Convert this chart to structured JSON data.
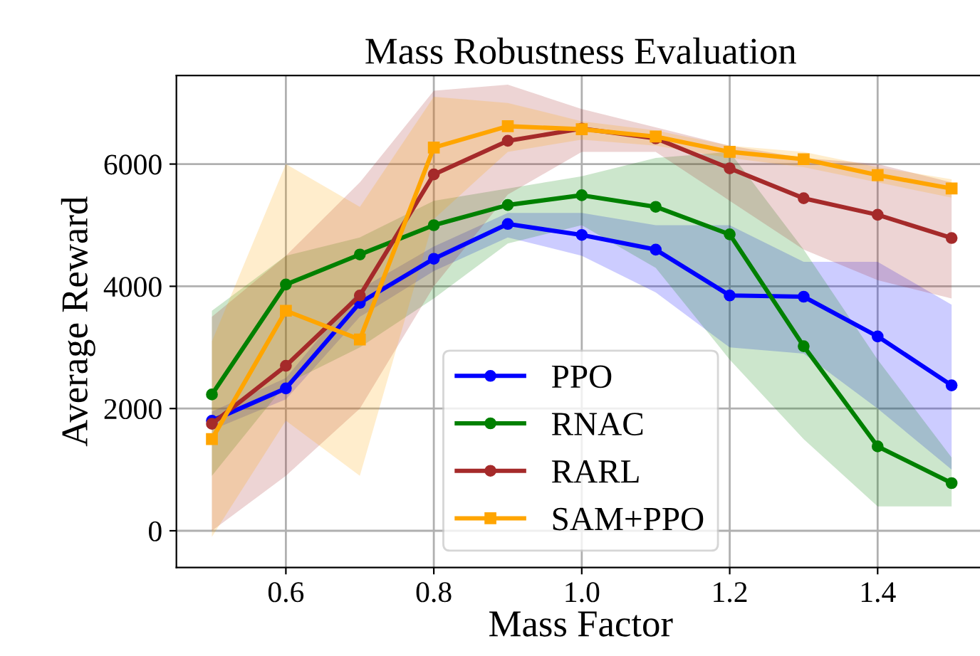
{
  "chart_data": {
    "type": "line",
    "title": "Mass Robustness Evaluation",
    "xlabel": "Mass Factor",
    "ylabel": "Average Reward",
    "x": [
      0.5,
      0.6,
      0.7,
      0.8,
      0.9,
      1.0,
      1.1,
      1.2,
      1.3,
      1.4,
      1.5
    ],
    "xlim": [
      0.452,
      1.545
    ],
    "ylim": [
      -600,
      7450
    ],
    "xticks": [
      0.6,
      0.8,
      {
        "value": 1,
        "label": "1.0"
      },
      1.2,
      1.4
    ],
    "yticks": [
      0,
      2000,
      4000,
      6000
    ],
    "grid": true,
    "legend": "bottom",
    "line_style": "solid",
    "series": [
      {
        "name": "PPO",
        "color": "#0000ff",
        "marker": "circle",
        "values": [
          1800,
          2330,
          3730,
          4450,
          5020,
          4840,
          4600,
          3850,
          3830,
          3180,
          2380
        ],
        "lower": [
          1650,
          2150,
          3500,
          4250,
          4800,
          4500,
          3900,
          3000,
          2900,
          2000,
          1000
        ],
        "upper": [
          1950,
          2500,
          3950,
          4650,
          5200,
          5200,
          5000,
          5000,
          4400,
          4400,
          3700
        ]
      },
      {
        "name": "RNAC",
        "color": "#008000",
        "marker": "circle",
        "values": [
          2230,
          4030,
          4520,
          5000,
          5330,
          5490,
          5300,
          4850,
          3020,
          1380,
          780
        ],
        "lower": [
          900,
          2400,
          3000,
          3800,
          4700,
          5000,
          4300,
          2800,
          1500,
          400,
          400
        ],
        "upper": [
          3600,
          4500,
          4800,
          5400,
          5600,
          5800,
          6100,
          6200,
          4600,
          2800,
          1200
        ]
      },
      {
        "name": "RARL",
        "color": "#a52a2a",
        "marker": "circle",
        "values": [
          1750,
          2700,
          3850,
          5830,
          6380,
          6580,
          6420,
          5930,
          5440,
          5170,
          4790
        ],
        "lower": [
          0,
          900,
          2000,
          4000,
          5500,
          6200,
          6200,
          5400,
          4600,
          4100,
          3800
        ],
        "upper": [
          3500,
          4500,
          5700,
          7200,
          7300,
          6900,
          6600,
          6300,
          6100,
          6000,
          5700
        ]
      },
      {
        "name": "SAM+PPO",
        "color": "#ffa500",
        "marker": "square",
        "values": [
          1500,
          3600,
          3130,
          6270,
          6620,
          6570,
          6450,
          6200,
          6080,
          5820,
          5600
        ],
        "lower": [
          -100,
          1800,
          900,
          5100,
          6200,
          6400,
          6300,
          6100,
          5950,
          5700,
          5450
        ],
        "upper": [
          3100,
          6000,
          5300,
          7100,
          7000,
          6700,
          6550,
          6300,
          6200,
          5950,
          5750
        ]
      }
    ]
  }
}
